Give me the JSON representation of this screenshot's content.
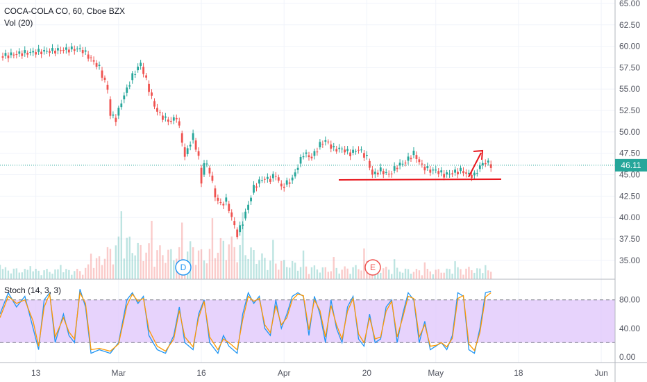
{
  "header": {
    "title": "COCA-COLA CO, 60, Cboe BZX",
    "volume_label": "Vol (20)"
  },
  "stoch": {
    "label": "Stoch (14, 3, 3)",
    "upper_band": 80,
    "lower_band": 20,
    "fill_color": "#e1c8fb"
  },
  "last_price": {
    "value": "46.11",
    "color": "#26a69a"
  },
  "event_badges": [
    {
      "text": "D",
      "color": "#2196f3"
    },
    {
      "text": "E",
      "color": "#ef5350"
    }
  ],
  "colors": {
    "up": "#26a69a",
    "down": "#ef5350",
    "annotation": "#e8161d"
  },
  "chart_data": [
    {
      "type": "candlestick",
      "title": "COCA-COLA CO, 60, Cboe BZX",
      "ylim": [
        32.8,
        65.4
      ],
      "y_ticks": [
        "65.00",
        "62.50",
        "60.00",
        "57.50",
        "55.00",
        "52.50",
        "50.00",
        "47.50",
        "45.00",
        "42.50",
        "40.00",
        "37.50",
        "35.00"
      ],
      "x_tick_labels": [
        "13",
        "Mar",
        "16",
        "Apr",
        "20",
        "May",
        "18",
        "Jun"
      ],
      "x_tick_index": [
        13,
        43,
        73,
        103,
        133,
        158,
        188,
        218
      ],
      "close_path": [
        [
          0,
          58.8
        ],
        [
          8,
          59.2
        ],
        [
          16,
          59.4
        ],
        [
          24,
          59.6
        ],
        [
          28,
          59.7
        ],
        [
          30,
          59.5
        ],
        [
          33,
          58.5
        ],
        [
          36,
          57.5
        ],
        [
          39,
          55.0
        ],
        [
          40,
          52.0
        ],
        [
          42,
          51.5
        ],
        [
          44,
          53.5
        ],
        [
          46,
          55.0
        ],
        [
          48,
          56.5
        ],
        [
          50,
          57.5
        ],
        [
          51,
          58.0
        ],
        [
          52,
          57.0
        ],
        [
          54,
          55.0
        ],
        [
          56,
          53.0
        ],
        [
          58,
          52.0
        ],
        [
          60,
          51.5
        ],
        [
          62,
          51.2
        ],
        [
          64,
          51.8
        ],
        [
          66,
          49.0
        ],
        [
          67,
          47.0
        ],
        [
          68,
          48.0
        ],
        [
          70,
          49.5
        ],
        [
          72,
          47.0
        ],
        [
          73,
          44.0
        ],
        [
          74,
          46.5
        ],
        [
          76,
          45.5
        ],
        [
          78,
          42.5
        ],
        [
          80,
          41.5
        ],
        [
          82,
          42.0
        ],
        [
          84,
          40.0
        ],
        [
          86,
          38.0
        ],
        [
          88,
          39.5
        ],
        [
          90,
          41.5
        ],
        [
          92,
          43.5
        ],
        [
          95,
          44.5
        ],
        [
          98,
          44.5
        ],
        [
          100,
          45.0
        ],
        [
          102,
          43.5
        ],
        [
          104,
          44.0
        ],
        [
          106,
          44.5
        ],
        [
          108,
          46.0
        ],
        [
          110,
          47.5
        ],
        [
          113,
          47.0
        ],
        [
          116,
          48.5
        ],
        [
          118,
          49.0
        ],
        [
          121,
          48.0
        ],
        [
          124,
          48.0
        ],
        [
          127,
          47.5
        ],
        [
          130,
          48.0
        ],
        [
          133,
          47.0
        ],
        [
          135,
          45.0
        ],
        [
          138,
          45.5
        ],
        [
          141,
          45.0
        ],
        [
          144,
          46.0
        ],
        [
          147,
          46.5
        ],
        [
          150,
          47.5
        ],
        [
          153,
          46.0
        ],
        [
          156,
          45.5
        ],
        [
          158,
          45.5
        ],
        [
          161,
          45.0
        ],
        [
          164,
          45.2
        ],
        [
          167,
          45.5
        ],
        [
          170,
          45.0
        ],
        [
          172,
          44.9
        ],
        [
          174,
          46.0
        ],
        [
          176,
          46.5
        ],
        [
          178,
          46.1
        ]
      ],
      "volume_ylim": [
        0,
        4
      ],
      "volume_profile": [
        [
          0,
          0.6
        ],
        [
          10,
          0.5
        ],
        [
          20,
          0.5
        ],
        [
          30,
          0.5
        ],
        [
          38,
          1.4
        ],
        [
          42,
          2.0
        ],
        [
          46,
          2.2
        ],
        [
          50,
          1.8
        ],
        [
          56,
          1.7
        ],
        [
          62,
          1.5
        ],
        [
          66,
          1.6
        ],
        [
          70,
          1.9
        ],
        [
          74,
          1.3
        ],
        [
          78,
          1.8
        ],
        [
          82,
          2.2
        ],
        [
          86,
          1.9
        ],
        [
          90,
          1.7
        ],
        [
          94,
          1.3
        ],
        [
          100,
          1.0
        ],
        [
          106,
          0.9
        ],
        [
          112,
          0.7
        ],
        [
          118,
          0.6
        ],
        [
          124,
          0.6
        ],
        [
          130,
          0.7
        ],
        [
          134,
          1.0
        ],
        [
          140,
          0.6
        ],
        [
          150,
          0.5
        ],
        [
          160,
          0.5
        ],
        [
          168,
          0.6
        ],
        [
          172,
          0.6
        ],
        [
          178,
          0.4
        ]
      ]
    },
    {
      "type": "line",
      "title": "Stoch (14, 3, 3)",
      "ylim": [
        -8,
        108
      ],
      "y_ticks": [
        "80.00",
        "40.00",
        "0.00"
      ],
      "series": [
        {
          "color": "#2196f3",
          "values": [
            [
              0,
              60
            ],
            [
              3,
              90
            ],
            [
              6,
              70
            ],
            [
              9,
              85
            ],
            [
              12,
              40
            ],
            [
              14,
              10
            ],
            [
              16,
              80
            ],
            [
              18,
              90
            ],
            [
              20,
              20
            ],
            [
              23,
              60
            ],
            [
              25,
              30
            ],
            [
              27,
              20
            ],
            [
              29,
              95
            ],
            [
              31,
              70
            ],
            [
              33,
              5
            ],
            [
              36,
              10
            ],
            [
              40,
              5
            ],
            [
              43,
              20
            ],
            [
              46,
              80
            ],
            [
              48,
              90
            ],
            [
              50,
              75
            ],
            [
              52,
              85
            ],
            [
              54,
              30
            ],
            [
              57,
              10
            ],
            [
              60,
              5
            ],
            [
              63,
              30
            ],
            [
              65,
              70
            ],
            [
              67,
              20
            ],
            [
              70,
              10
            ],
            [
              72,
              60
            ],
            [
              74,
              80
            ],
            [
              76,
              20
            ],
            [
              79,
              5
            ],
            [
              81,
              30
            ],
            [
              83,
              15
            ],
            [
              86,
              5
            ],
            [
              88,
              60
            ],
            [
              90,
              90
            ],
            [
              92,
              75
            ],
            [
              94,
              85
            ],
            [
              96,
              40
            ],
            [
              98,
              30
            ],
            [
              100,
              80
            ],
            [
              102,
              40
            ],
            [
              104,
              60
            ],
            [
              106,
              85
            ],
            [
              108,
              90
            ],
            [
              110,
              85
            ],
            [
              112,
              30
            ],
            [
              114,
              85
            ],
            [
              116,
              60
            ],
            [
              118,
              20
            ],
            [
              120,
              80
            ],
            [
              122,
              40
            ],
            [
              124,
              20
            ],
            [
              126,
              70
            ],
            [
              128,
              85
            ],
            [
              130,
              25
            ],
            [
              132,
              15
            ],
            [
              134,
              60
            ],
            [
              136,
              20
            ],
            [
              138,
              25
            ],
            [
              140,
              70
            ],
            [
              142,
              80
            ],
            [
              144,
              20
            ],
            [
              146,
              60
            ],
            [
              148,
              90
            ],
            [
              150,
              80
            ],
            [
              152,
              20
            ],
            [
              154,
              50
            ],
            [
              156,
              10
            ],
            [
              158,
              15
            ],
            [
              160,
              20
            ],
            [
              162,
              10
            ],
            [
              164,
              30
            ],
            [
              166,
              90
            ],
            [
              168,
              85
            ],
            [
              170,
              10
            ],
            [
              172,
              5
            ],
            [
              174,
              40
            ],
            [
              176,
              90
            ],
            [
              178,
              92
            ]
          ]
        },
        {
          "color": "#ff9800",
          "values": [
            [
              0,
              55
            ],
            [
              3,
              85
            ],
            [
              6,
              75
            ],
            [
              9,
              80
            ],
            [
              12,
              50
            ],
            [
              14,
              15
            ],
            [
              16,
              70
            ],
            [
              18,
              88
            ],
            [
              20,
              28
            ],
            [
              23,
              55
            ],
            [
              25,
              35
            ],
            [
              27,
              25
            ],
            [
              29,
              90
            ],
            [
              31,
              75
            ],
            [
              33,
              10
            ],
            [
              36,
              12
            ],
            [
              40,
              8
            ],
            [
              43,
              18
            ],
            [
              46,
              72
            ],
            [
              48,
              88
            ],
            [
              50,
              78
            ],
            [
              52,
              82
            ],
            [
              54,
              38
            ],
            [
              57,
              15
            ],
            [
              60,
              8
            ],
            [
              63,
              25
            ],
            [
              65,
              65
            ],
            [
              67,
              28
            ],
            [
              70,
              14
            ],
            [
              72,
              55
            ],
            [
              74,
              78
            ],
            [
              76,
              28
            ],
            [
              79,
              10
            ],
            [
              81,
              25
            ],
            [
              83,
              20
            ],
            [
              86,
              10
            ],
            [
              88,
              52
            ],
            [
              90,
              85
            ],
            [
              92,
              78
            ],
            [
              94,
              82
            ],
            [
              96,
              45
            ],
            [
              98,
              34
            ],
            [
              100,
              72
            ],
            [
              102,
              45
            ],
            [
              104,
              55
            ],
            [
              106,
              80
            ],
            [
              108,
              88
            ],
            [
              110,
              86
            ],
            [
              112,
              38
            ],
            [
              114,
              80
            ],
            [
              116,
              65
            ],
            [
              118,
              28
            ],
            [
              120,
              72
            ],
            [
              122,
              45
            ],
            [
              124,
              25
            ],
            [
              126,
              64
            ],
            [
              128,
              82
            ],
            [
              130,
              32
            ],
            [
              132,
              20
            ],
            [
              134,
              55
            ],
            [
              136,
              25
            ],
            [
              138,
              28
            ],
            [
              140,
              64
            ],
            [
              142,
              78
            ],
            [
              144,
              28
            ],
            [
              146,
              55
            ],
            [
              148,
              85
            ],
            [
              150,
              82
            ],
            [
              152,
              28
            ],
            [
              154,
              45
            ],
            [
              156,
              15
            ],
            [
              158,
              16
            ],
            [
              160,
              20
            ],
            [
              162,
              14
            ],
            [
              164,
              26
            ],
            [
              166,
              82
            ],
            [
              168,
              86
            ],
            [
              170,
              18
            ],
            [
              172,
              9
            ],
            [
              174,
              34
            ],
            [
              176,
              84
            ],
            [
              178,
              90
            ]
          ]
        }
      ]
    }
  ]
}
